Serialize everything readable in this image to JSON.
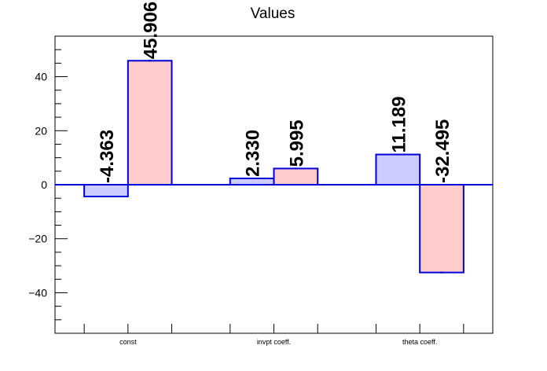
{
  "chart_data": {
    "type": "bar",
    "title": "Values",
    "xlabel": "",
    "ylabel": "",
    "categories": [
      "const",
      "invpt coeff.",
      "theta coeff."
    ],
    "series": [
      {
        "values": [
          -4.363,
          2.33,
          11.189
        ],
        "value_labels": [
          "-4.363",
          "2.330",
          "11.189"
        ],
        "fill": "#ccccff",
        "stroke": "#0000dd"
      },
      {
        "values": [
          45.906,
          5.995,
          -32.495
        ],
        "value_labels": [
          "45.906",
          "5.995",
          "-32.495"
        ],
        "fill": "#ffcccc",
        "stroke": "#0000dd"
      }
    ],
    "ylim": [
      -55,
      55
    ],
    "yticks": [
      -40,
      -20,
      0,
      20,
      40
    ],
    "ytick_labels": [
      "−40",
      "−20",
      "0",
      "20",
      "40"
    ],
    "grid": false,
    "legend": "none",
    "baseline_color": "#0000dd"
  }
}
